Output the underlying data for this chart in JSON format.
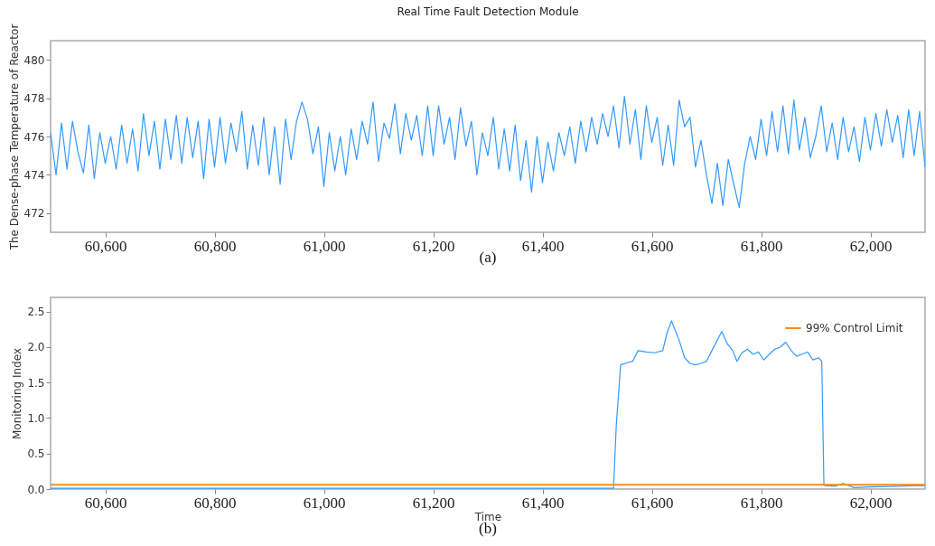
{
  "chart_data": [
    {
      "type": "line",
      "title": "Real Time Fault Detection Module",
      "ylabel": "The Dense-phase Temperature of Reactor",
      "annotations": [
        "(a)"
      ],
      "x": [
        60500,
        60510,
        60520,
        60530,
        60540,
        60550,
        60560,
        60570,
        60580,
        60590,
        60600,
        60610,
        60620,
        60630,
        60640,
        60650,
        60660,
        60670,
        60680,
        60690,
        60700,
        60710,
        60720,
        60730,
        60740,
        60750,
        60760,
        60770,
        60780,
        60790,
        60800,
        60810,
        60820,
        60830,
        60840,
        60850,
        60860,
        60870,
        60880,
        60890,
        60900,
        60910,
        60920,
        60930,
        60940,
        60950,
        60960,
        60970,
        60980,
        60990,
        61000,
        61010,
        61020,
        61030,
        61040,
        61050,
        61060,
        61070,
        61080,
        61090,
        61100,
        61110,
        61120,
        61130,
        61140,
        61150,
        61160,
        61170,
        61180,
        61190,
        61200,
        61210,
        61220,
        61230,
        61240,
        61250,
        61260,
        61270,
        61280,
        61290,
        61300,
        61310,
        61320,
        61330,
        61340,
        61350,
        61360,
        61370,
        61380,
        61390,
        61400,
        61410,
        61420,
        61430,
        61440,
        61450,
        61460,
        61470,
        61480,
        61490,
        61500,
        61510,
        61520,
        61530,
        61540,
        61550,
        61560,
        61570,
        61580,
        61590,
        61600,
        61610,
        61620,
        61630,
        61640,
        61650,
        61660,
        61670,
        61680,
        61690,
        61700,
        61710,
        61720,
        61730,
        61740,
        61750,
        61760,
        61770,
        61780,
        61790,
        61800,
        61810,
        61820,
        61830,
        61840,
        61850,
        61860,
        61870,
        61880,
        61890,
        61900,
        61910,
        61920,
        61930,
        61940,
        61950,
        61960,
        61970,
        61980,
        61990,
        62000,
        62010,
        62020,
        62030,
        62040,
        62050,
        62060,
        62070,
        62080,
        62090,
        62100
      ],
      "series": [
        {
          "color": "#3399ff",
          "values": [
            476.2,
            474.0,
            476.7,
            474.3,
            476.8,
            475.2,
            474.1,
            476.6,
            473.8,
            476.2,
            474.6,
            476.0,
            474.3,
            476.6,
            474.6,
            476.4,
            474.2,
            477.2,
            475.0,
            476.8,
            474.3,
            476.9,
            474.8,
            477.1,
            474.6,
            477.0,
            474.9,
            476.8,
            473.8,
            476.9,
            474.4,
            477.0,
            474.6,
            476.7,
            475.2,
            477.3,
            474.3,
            476.6,
            474.5,
            477.0,
            474.0,
            476.5,
            473.5,
            476.9,
            474.8,
            476.8,
            477.8,
            476.9,
            475.1,
            476.5,
            473.4,
            476.2,
            474.2,
            476.0,
            474.0,
            476.4,
            474.8,
            476.8,
            475.6,
            477.8,
            474.7,
            476.7,
            475.9,
            477.7,
            475.1,
            477.2,
            475.8,
            477.1,
            475.0,
            477.6,
            475.0,
            477.6,
            475.6,
            477.0,
            474.8,
            477.5,
            475.5,
            476.8,
            474.0,
            476.2,
            475.0,
            477.0,
            474.3,
            476.4,
            474.2,
            476.6,
            473.7,
            475.8,
            473.1,
            476.0,
            473.6,
            475.7,
            474.2,
            476.2,
            475.0,
            476.5,
            474.6,
            476.8,
            475.2,
            477.0,
            475.6,
            477.2,
            476.0,
            477.6,
            475.4,
            478.1,
            475.6,
            477.4,
            474.8,
            477.6,
            475.7,
            477.0,
            474.5,
            476.6,
            474.5,
            477.9,
            476.5,
            477.0,
            474.4,
            475.8,
            474.0,
            472.5,
            474.6,
            472.4,
            474.8,
            473.5,
            472.3,
            474.6,
            476.0,
            474.8,
            476.9,
            475.0,
            477.3,
            475.2,
            477.6,
            475.1,
            477.9,
            475.3,
            477.0,
            474.9,
            476.0,
            477.6,
            475.2,
            476.7,
            474.8,
            477.0,
            475.2,
            476.5,
            474.7,
            477.0,
            475.3,
            477.2,
            475.5,
            477.4,
            475.7,
            477.1,
            474.9,
            477.4,
            475.0,
            477.3,
            474.4
          ]
        }
      ],
      "xlim": [
        60500,
        62100
      ],
      "xticks": [
        {
          "value": 60600,
          "label": "60,600"
        },
        {
          "value": 60800,
          "label": "60,800"
        },
        {
          "value": 61000,
          "label": "61,000"
        },
        {
          "value": 61200,
          "label": "61,200"
        },
        {
          "value": 61400,
          "label": "61,400"
        },
        {
          "value": 61600,
          "label": "61,600"
        },
        {
          "value": 61800,
          "label": "61,800"
        },
        {
          "value": 62000,
          "label": "62,000"
        }
      ],
      "ylim": [
        471,
        481
      ],
      "yticks": [
        472,
        474,
        476,
        478,
        480
      ]
    },
    {
      "type": "line",
      "xlabel": "Time",
      "ylabel": "Monitoring Index",
      "annotations": [
        "(b)"
      ],
      "legend": "top right",
      "x": [
        60500,
        60800,
        61100,
        61400,
        61530,
        61535,
        61543,
        61555,
        61565,
        61575,
        61590,
        61605,
        61620,
        61628,
        61636,
        61642,
        61650,
        61660,
        61670,
        61680,
        61690,
        61700,
        61710,
        61720,
        61728,
        61738,
        61748,
        61756,
        61765,
        61775,
        61785,
        61795,
        61805,
        61815,
        61825,
        61835,
        61845,
        61855,
        61865,
        61875,
        61885,
        61895,
        61905,
        61911,
        61915,
        61935,
        61950,
        61970,
        62000,
        62050,
        62100
      ],
      "series": [
        {
          "color": "#3399ff",
          "values": [
            0.01,
            0.01,
            0.01,
            0.01,
            0.01,
            0.9,
            1.75,
            1.78,
            1.8,
            1.95,
            1.93,
            1.92,
            1.95,
            2.2,
            2.37,
            2.25,
            2.1,
            1.85,
            1.77,
            1.75,
            1.77,
            1.8,
            1.95,
            2.1,
            2.22,
            2.05,
            1.95,
            1.8,
            1.92,
            1.97,
            1.9,
            1.93,
            1.82,
            1.9,
            1.97,
            2.0,
            2.07,
            1.95,
            1.87,
            1.9,
            1.93,
            1.82,
            1.85,
            1.8,
            0.05,
            0.04,
            0.08,
            0.02,
            0.03,
            0.04,
            0.05
          ]
        }
      ],
      "ref_lines": [
        {
          "axis": "y",
          "value": 0.06,
          "label": "99% Control Limit",
          "color": "#ff8c1a"
        }
      ],
      "xlim": [
        60500,
        62100
      ],
      "xticks": [
        {
          "value": 60600,
          "label": "60,600"
        },
        {
          "value": 60800,
          "label": "60,800"
        },
        {
          "value": 61000,
          "label": "61,000"
        },
        {
          "value": 61200,
          "label": "61,200"
        },
        {
          "value": 61400,
          "label": "61,400"
        },
        {
          "value": 61600,
          "label": "61,600"
        },
        {
          "value": 61800,
          "label": "61,800"
        },
        {
          "value": 62000,
          "label": "62,000"
        }
      ],
      "ylim": [
        0,
        2.7
      ],
      "yticks": [
        {
          "value": 0,
          "label": "0.0"
        },
        0.5,
        {
          "value": 1,
          "label": "1.0"
        },
        1.5,
        {
          "value": 2,
          "label": "2.0"
        },
        2.5
      ]
    }
  ]
}
